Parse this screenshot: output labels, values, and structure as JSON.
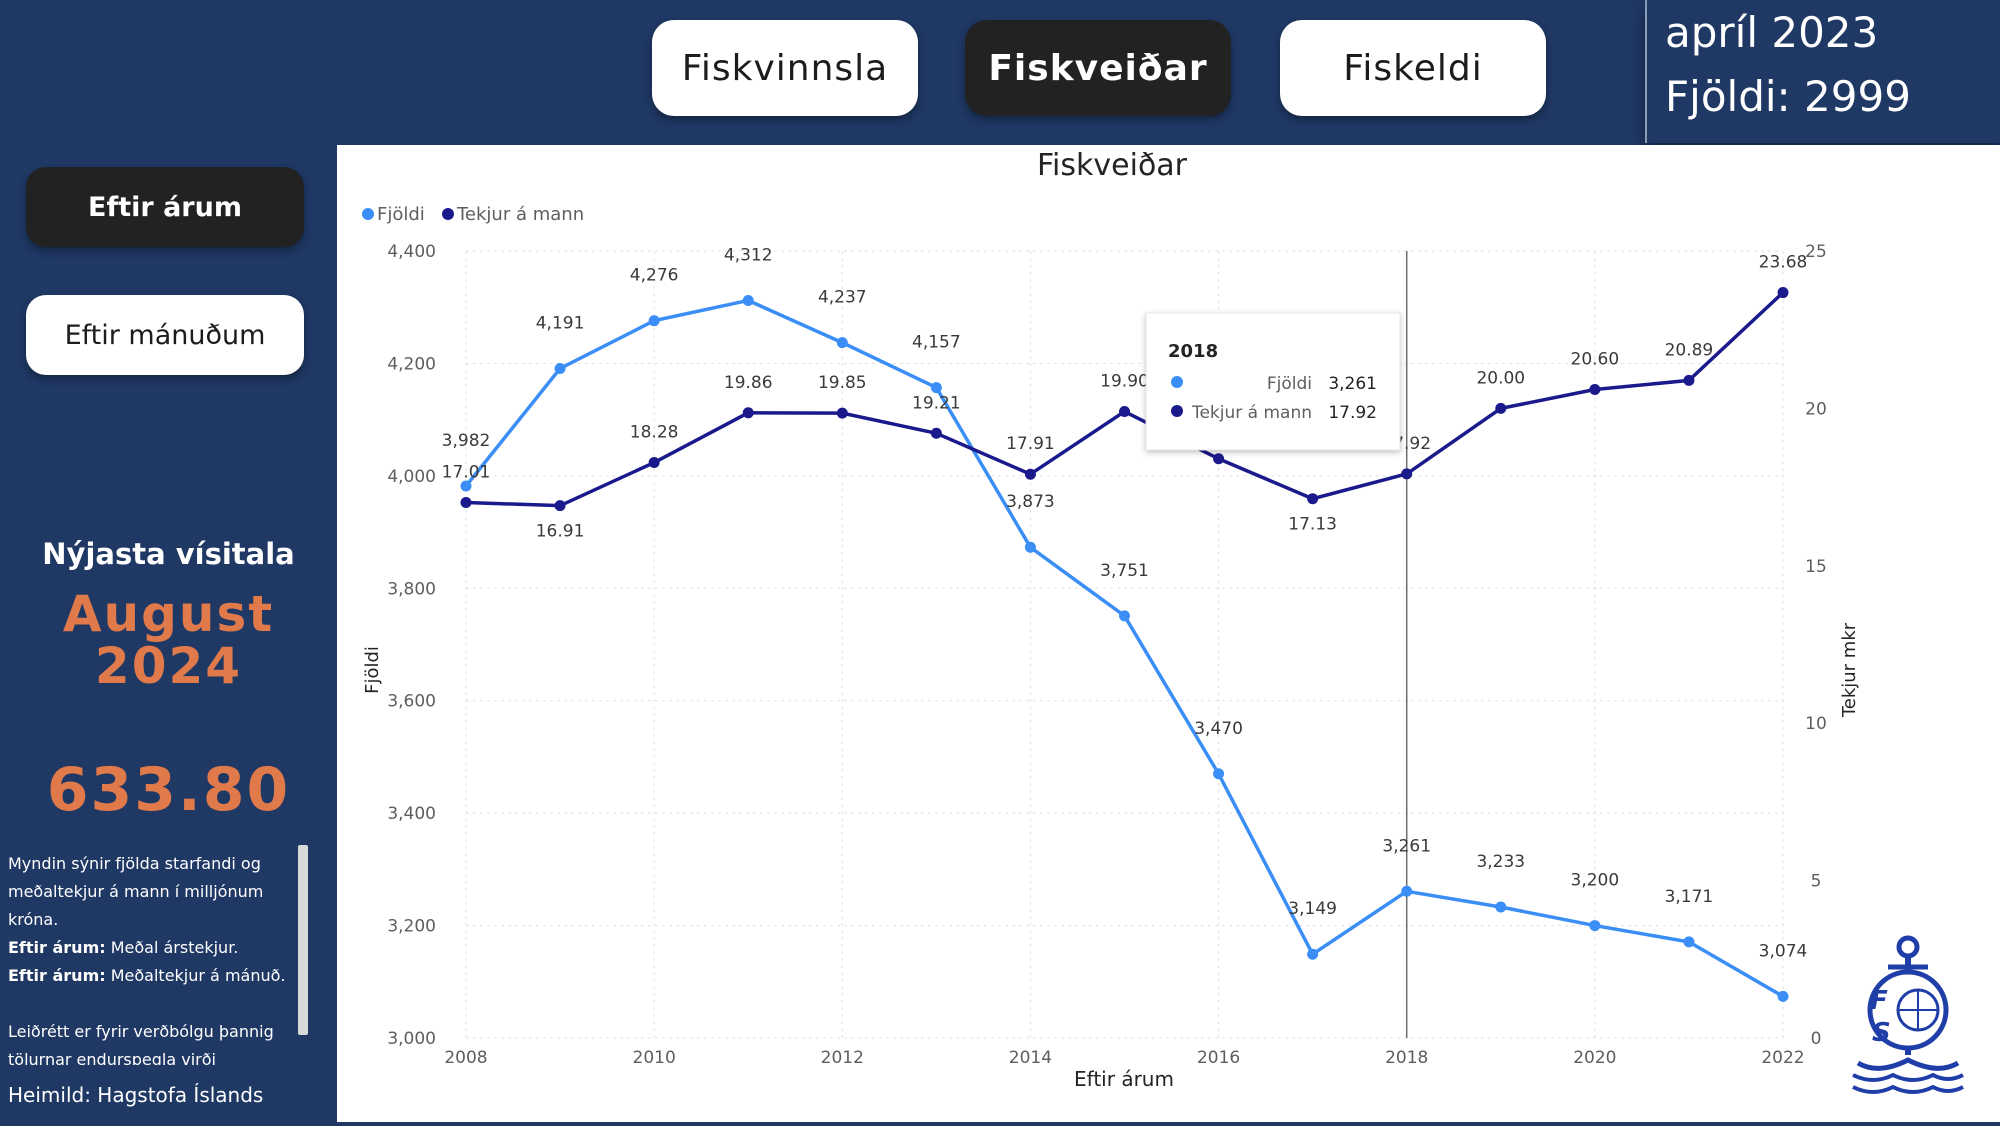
{
  "tabs": [
    {
      "label": "Fiskvinnsla",
      "active": false
    },
    {
      "label": "Fiskveiðar",
      "active": true
    },
    {
      "label": "Fiskeldi",
      "active": false
    }
  ],
  "kpi": {
    "month": "apríl 2023",
    "count": "Fjöldi: 2999"
  },
  "sidebar": {
    "btn_years": "Eftir árum",
    "btn_months": "Eftir mánuðum",
    "index_title": "Nýjasta vísitala",
    "index_month_1": "August",
    "index_month_2": "2024",
    "index_value": "633.80",
    "desc_line1": "Myndin sýnir fjölda starfandi og meðaltekjur á mann í milljónum króna.",
    "desc_b1": "Eftir árum:",
    "desc_t1": " Meðal árstekjur.",
    "desc_b2": "Eftir árum:",
    "desc_t2": " Meðaltekjur á mánuð.",
    "desc_line4": "Leiðrétt er fyrir verðbólgu þannig tölurnar endurspegla virði krónunnar í dag.",
    "source": "Heimild: Hagstofa Íslands"
  },
  "tooltip": {
    "year": "2018",
    "row1_label": "Fjöldi",
    "row1_value": "3,261",
    "row2_label": "Tekjur á mann",
    "row2_value": "17.92"
  },
  "colors": {
    "fjoldi": "#3a8ef5",
    "tekjur": "#1a1a8c",
    "accent": "#e07a4a",
    "navy": "#1f3864"
  },
  "chart_data": {
    "type": "line",
    "title": "Fiskveiðar",
    "xlabel": "Eftir árum",
    "ylabel": "Fjöldi",
    "y2label": "Tekjur mkr",
    "legend_position": "top-left",
    "grid": true,
    "ylim": [
      3000,
      4400
    ],
    "y2lim": [
      0,
      25
    ],
    "yticks": [
      "3,000",
      "3,200",
      "3,400",
      "3,600",
      "3,800",
      "4,000",
      "4,200",
      "4,400"
    ],
    "y2ticks": [
      "0",
      "5",
      "10",
      "15",
      "20",
      "25"
    ],
    "xticks": [
      "2008",
      "2010",
      "2012",
      "2014",
      "2016",
      "2018",
      "2020",
      "2022"
    ],
    "x": [
      2008,
      2009,
      2010,
      2011,
      2012,
      2013,
      2014,
      2015,
      2016,
      2017,
      2018,
      2019,
      2020,
      2021,
      2022
    ],
    "series": [
      {
        "name": "Fjöldi",
        "axis": "left",
        "values": [
          3982,
          4191,
          4276,
          4312,
          4237,
          4157,
          3873,
          3751,
          3470,
          3149,
          3261,
          3233,
          3200,
          3171,
          3074
        ],
        "labels": [
          "3,982",
          "4,191",
          "4,276",
          "4,312",
          "4,237",
          "4,157",
          "3,873",
          "3,751",
          "3,470",
          "3,149",
          "3,261",
          "3,233",
          "3,200",
          "3,171",
          "3,074"
        ]
      },
      {
        "name": "Tekjur á mann",
        "axis": "right",
        "values": [
          17.01,
          16.91,
          18.28,
          19.86,
          19.85,
          19.21,
          17.91,
          19.9,
          18.4,
          17.13,
          17.92,
          20.0,
          20.6,
          20.89,
          23.68
        ],
        "labels": [
          "17.01",
          "16.91",
          "18.28",
          "19.86",
          "19.85",
          "19.21",
          "17.91",
          "19.90",
          "",
          "17.13",
          "17.92",
          "20.00",
          "20.60",
          "20.89",
          "23.68"
        ]
      }
    ],
    "highlight_x": 2018
  }
}
